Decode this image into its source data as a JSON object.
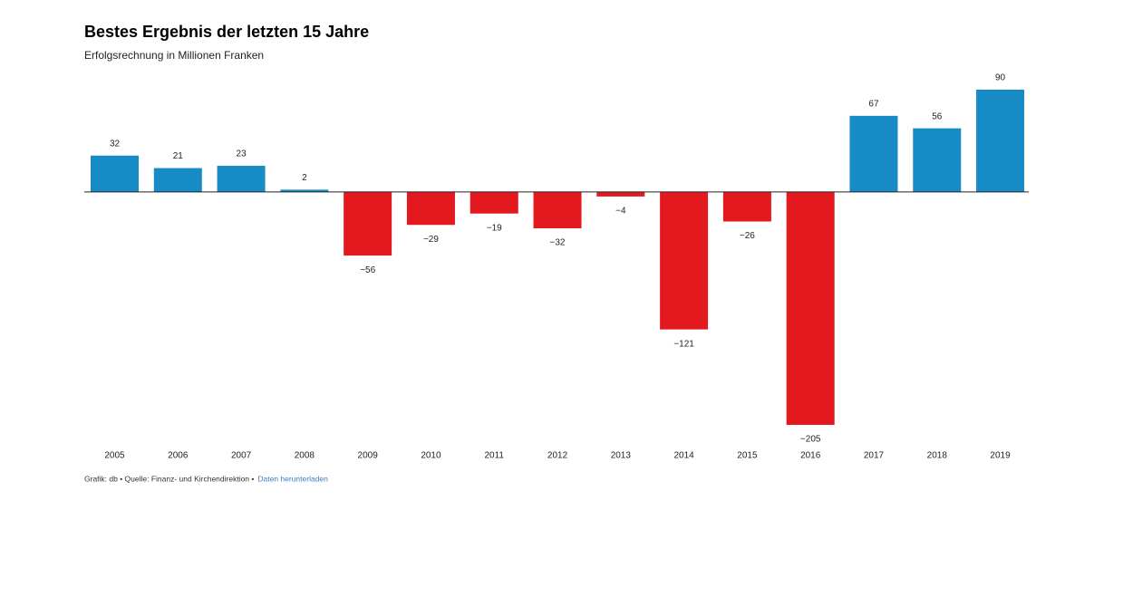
{
  "chart_data": {
    "type": "bar",
    "title": "Bestes Ergebnis der letzten 15 Jahre",
    "subtitle": "Erfolgsrechnung in Millionen Franken",
    "categories": [
      "2005",
      "2006",
      "2007",
      "2008",
      "2009",
      "2010",
      "2011",
      "2012",
      "2013",
      "2014",
      "2015",
      "2016",
      "2017",
      "2018",
      "2019"
    ],
    "values": [
      32,
      21,
      23,
      2,
      -56,
      -29,
      -19,
      -32,
      -4,
      -121,
      -26,
      -205,
      67,
      56,
      90
    ],
    "value_labels": [
      "32",
      "21",
      "23",
      "2",
      "−56",
      "−29",
      "−19",
      "−32",
      "−4",
      "−121",
      "−26",
      "−205",
      "67",
      "56",
      "90"
    ],
    "positive_color": "#168bc5",
    "negative_color": "#e3191f",
    "footer": {
      "source": "Grafik: db • Quelle: Finanz- und Kirchendirektion •",
      "link": "Daten herunterladen"
    }
  }
}
